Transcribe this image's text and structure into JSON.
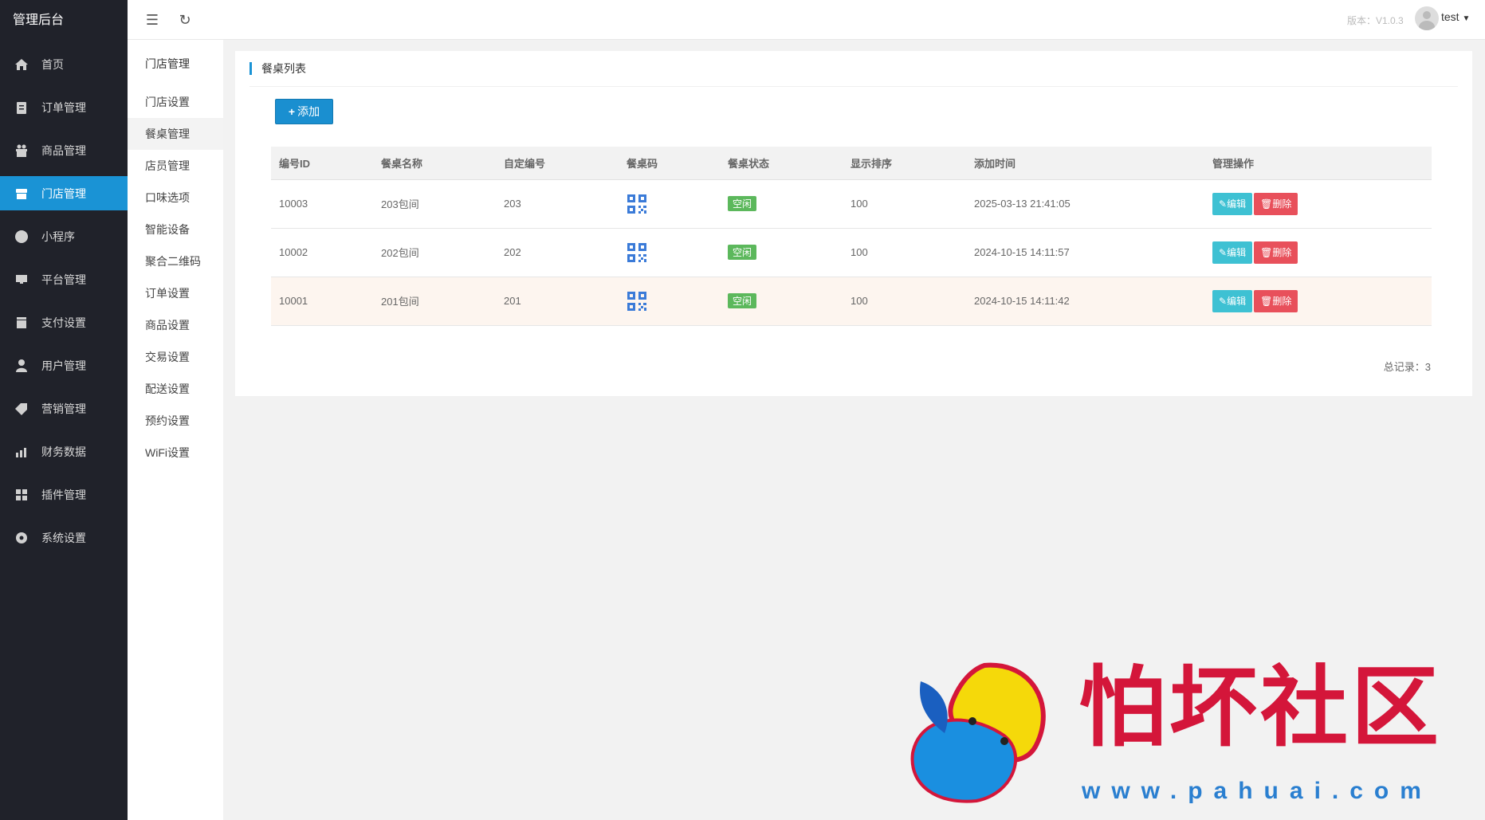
{
  "app": {
    "title": "管理后台"
  },
  "sidebar": {
    "items": [
      {
        "label": "首页",
        "icon": "home-icon"
      },
      {
        "label": "订单管理",
        "icon": "clipboard-icon"
      },
      {
        "label": "商品管理",
        "icon": "gift-icon"
      },
      {
        "label": "门店管理",
        "icon": "store-icon",
        "active": true
      },
      {
        "label": "小程序",
        "icon": "miniprogram-icon"
      },
      {
        "label": "平台管理",
        "icon": "monitor-icon"
      },
      {
        "label": "支付设置",
        "icon": "payment-icon"
      },
      {
        "label": "用户管理",
        "icon": "user-icon"
      },
      {
        "label": "营销管理",
        "icon": "tag-icon"
      },
      {
        "label": "财务数据",
        "icon": "chart-icon"
      },
      {
        "label": "插件管理",
        "icon": "plugin-icon"
      },
      {
        "label": "系统设置",
        "icon": "gear-icon"
      }
    ]
  },
  "topbar": {
    "version": "版本：V1.0.3",
    "user": "test"
  },
  "submenu": {
    "title": "门店管理",
    "items": [
      "门店设置",
      "餐桌管理",
      "店员管理",
      "口味选项",
      "智能设备",
      "聚合二维码",
      "订单设置",
      "商品设置",
      "交易设置",
      "配送设置",
      "预约设置",
      "WiFi设置"
    ],
    "active": "餐桌管理"
  },
  "panel": {
    "title": "餐桌列表",
    "add_label": "添加",
    "total": "总记录：3"
  },
  "table": {
    "headers": [
      "编号ID",
      "餐桌名称",
      "自定编号",
      "餐桌码",
      "餐桌状态",
      "显示排序",
      "添加时间",
      "管理操作"
    ],
    "rows": [
      {
        "id": "10003",
        "name": "203包间",
        "code": "203",
        "status": "空闲",
        "sort": "100",
        "time": "2025-03-13 21:41:05"
      },
      {
        "id": "10002",
        "name": "202包间",
        "code": "202",
        "status": "空闲",
        "sort": "100",
        "time": "2024-10-15 14:11:57"
      },
      {
        "id": "10001",
        "name": "201包间",
        "code": "201",
        "status": "空闲",
        "sort": "100",
        "time": "2024-10-15 14:11:42",
        "highlight": true
      }
    ],
    "edit_label": "编辑",
    "delete_label": "删除"
  },
  "watermark": {
    "cn": "怕坏社区",
    "en": "www.pahuai.com"
  },
  "colors": {
    "sidebar": "#20222a",
    "accent": "#1a93d5",
    "edit": "#3ec1d3",
    "delete": "#e8505b",
    "status": "#5cb85c",
    "qr": "#3b7bd8"
  }
}
